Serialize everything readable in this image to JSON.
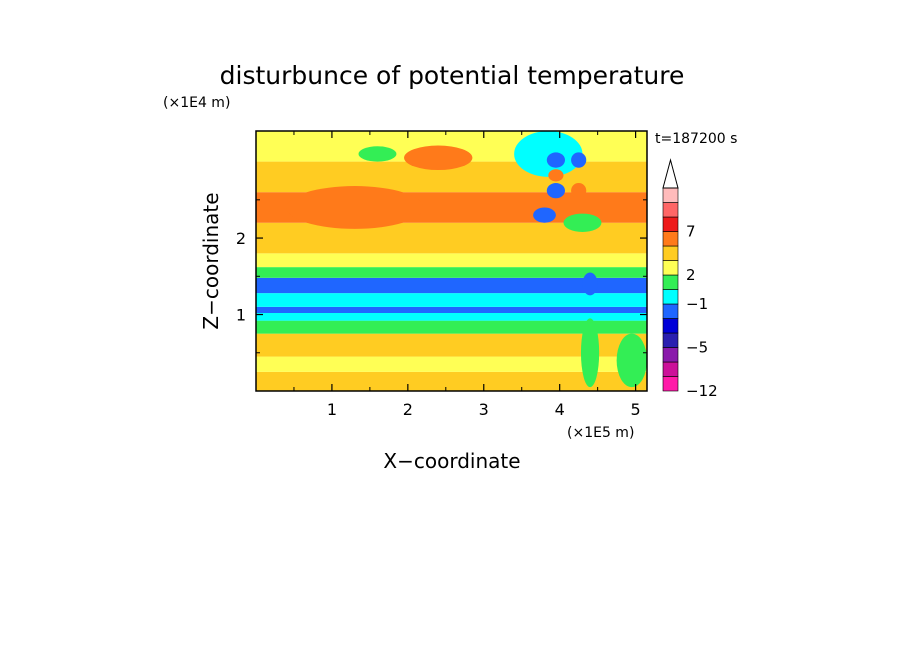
{
  "chart_data": {
    "type": "heatmap",
    "title": "disturbunce of potential temperature",
    "time_label": "t=187200 s",
    "xlabel": "X−coordinate",
    "ylabel": "Z−coordinate",
    "x_unit": "(×1E5 m)",
    "y_unit": "(×1E4 m)",
    "xlim": [
      0,
      5.15
    ],
    "ylim": [
      0,
      3.4
    ],
    "xticks": [
      {
        "value": 1,
        "label": "1"
      },
      {
        "value": 2,
        "label": "2"
      },
      {
        "value": 3,
        "label": "3"
      },
      {
        "value": 4,
        "label": "4"
      },
      {
        "value": 5,
        "label": "5"
      }
    ],
    "yticks": [
      {
        "value": 1,
        "label": "1"
      },
      {
        "value": 2,
        "label": "2"
      }
    ],
    "colorbar": {
      "extend_top": true,
      "levels": [
        {
          "color": "#ff1aa8",
          "label": "−12"
        },
        {
          "color": "#cc1199",
          "label": ""
        },
        {
          "color": "#8a1aab",
          "label": ""
        },
        {
          "color": "#2a1fb0",
          "label": "−5"
        },
        {
          "color": "#0000d8",
          "label": ""
        },
        {
          "color": "#1f66ff",
          "label": ""
        },
        {
          "color": "#00ffff",
          "label": "−1"
        },
        {
          "color": "#33ee55",
          "label": ""
        },
        {
          "color": "#ffff55",
          "label": "2"
        },
        {
          "color": "#ffcc22",
          "label": ""
        },
        {
          "color": "#ff7a1a",
          "label": ""
        },
        {
          "color": "#ee1a1a",
          "label": "7"
        },
        {
          "color": "#ff6666",
          "label": ""
        },
        {
          "color": "#ffbbbb",
          "label": ""
        }
      ]
    },
    "field_bands": [
      {
        "z": [
          0.0,
          0.25
        ],
        "value": 2.5
      },
      {
        "z": [
          0.25,
          0.45
        ],
        "value": 1.5
      },
      {
        "z": [
          0.45,
          0.75
        ],
        "value": 2.5
      },
      {
        "z": [
          0.75,
          0.92
        ],
        "value": 0
      },
      {
        "z": [
          0.92,
          1.02
        ],
        "value": -1.5
      },
      {
        "z": [
          1.02,
          1.1
        ],
        "value": -3
      },
      {
        "z": [
          1.1,
          1.28
        ],
        "value": -1.5
      },
      {
        "z": [
          1.28,
          1.48
        ],
        "value": -3
      },
      {
        "z": [
          1.48,
          1.62
        ],
        "value": 0
      },
      {
        "z": [
          1.62,
          1.8
        ],
        "value": 1.5
      },
      {
        "z": [
          1.8,
          2.2
        ],
        "value": 2.5
      },
      {
        "z": [
          2.2,
          2.6
        ],
        "value": 4
      },
      {
        "z": [
          2.6,
          3.0
        ],
        "value": 2.5
      },
      {
        "z": [
          3.0,
          3.4
        ],
        "value": 1.5
      }
    ],
    "anomalies": [
      {
        "x": 1.3,
        "z": 2.4,
        "rx": 0.9,
        "rz": 0.28,
        "value": 5
      },
      {
        "x": 2.4,
        "z": 3.05,
        "rx": 0.45,
        "rz": 0.16,
        "value": 5
      },
      {
        "x": 1.6,
        "z": 3.1,
        "rx": 0.25,
        "rz": 0.1,
        "value": 0
      },
      {
        "x": 3.85,
        "z": 3.1,
        "rx": 0.45,
        "rz": 0.3,
        "value": -1
      },
      {
        "x": 3.95,
        "z": 3.02,
        "rx": 0.12,
        "rz": 0.1,
        "value": -4
      },
      {
        "x": 4.25,
        "z": 3.02,
        "rx": 0.1,
        "rz": 0.1,
        "value": -4
      },
      {
        "x": 3.95,
        "z": 2.62,
        "rx": 0.12,
        "rz": 0.1,
        "value": -4
      },
      {
        "x": 4.25,
        "z": 2.62,
        "rx": 0.1,
        "rz": 0.1,
        "value": 4
      },
      {
        "x": 3.95,
        "z": 2.82,
        "rx": 0.1,
        "rz": 0.08,
        "value": 5
      },
      {
        "x": 3.8,
        "z": 2.3,
        "rx": 0.15,
        "rz": 0.1,
        "value": -4
      },
      {
        "x": 4.3,
        "z": 2.2,
        "rx": 0.25,
        "rz": 0.12,
        "value": 0
      },
      {
        "x": 4.4,
        "z": 0.5,
        "rx": 0.12,
        "rz": 0.45,
        "value": 0
      },
      {
        "x": 4.4,
        "z": 1.4,
        "rx": 0.1,
        "rz": 0.15,
        "value": -4
      },
      {
        "x": 4.95,
        "z": 0.4,
        "rx": 0.2,
        "rz": 0.35,
        "value": 0
      }
    ]
  }
}
